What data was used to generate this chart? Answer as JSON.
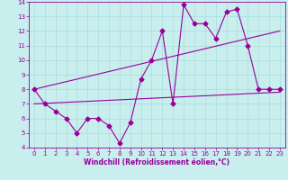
{
  "xlabel": "Windchill (Refroidissement éolien,°C)",
  "xlim": [
    -0.5,
    23.5
  ],
  "ylim": [
    4,
    14
  ],
  "yticks": [
    4,
    5,
    6,
    7,
    8,
    9,
    10,
    11,
    12,
    13,
    14
  ],
  "xticks": [
    0,
    1,
    2,
    3,
    4,
    5,
    6,
    7,
    8,
    9,
    10,
    11,
    12,
    13,
    14,
    15,
    16,
    17,
    18,
    19,
    20,
    21,
    22,
    23
  ],
  "bg_color": "#c8eeee",
  "grid_color": "#aadcdc",
  "line_color": "#990099",
  "line1_x": [
    0,
    1,
    2,
    3,
    4,
    5,
    6,
    7,
    8,
    9,
    10,
    11,
    12,
    13,
    14,
    15,
    16,
    17,
    18,
    19,
    20,
    21,
    22,
    23
  ],
  "line1_y": [
    8.0,
    7.0,
    6.5,
    6.0,
    5.0,
    6.0,
    6.0,
    5.5,
    4.3,
    5.7,
    8.7,
    10.0,
    12.0,
    7.0,
    13.8,
    12.5,
    12.5,
    11.5,
    13.3,
    13.5,
    11.0,
    8.0,
    8.0,
    8.0
  ],
  "line2_x": [
    0,
    23
  ],
  "line2_y": [
    7.0,
    7.8
  ],
  "line3_x": [
    0,
    23
  ],
  "line3_y": [
    8.0,
    12.0
  ],
  "marker": "D",
  "markersize": 2.5,
  "linewidth": 0.8,
  "tick_fontsize": 5.0,
  "xlabel_fontsize": 5.5
}
